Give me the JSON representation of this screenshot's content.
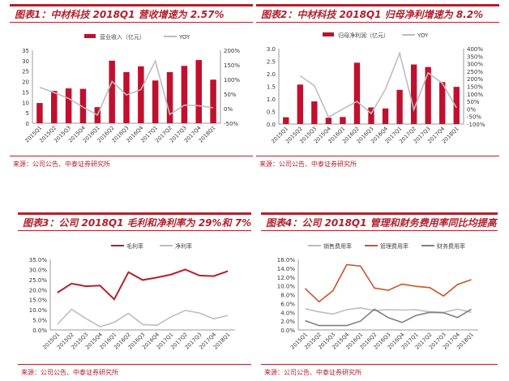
{
  "source": "来源：公司公告、中泰证券研究所",
  "colors": {
    "red": "#b3202c",
    "bar": "#c0102e",
    "gray": "#bdbdbd",
    "dark": "#7f7f7f",
    "orange": "#c8542a"
  },
  "chart_data": [
    {
      "type": "bar+line",
      "title": "图表1：中材科技 2018Q1 营收增速为 2.57%",
      "categories": [
        "2015Q1",
        "2015Q2",
        "2015Q3",
        "2015Q4",
        "2016Q1",
        "2016Q2",
        "2016Q3",
        "2016Q4",
        "2017Q1",
        "2017Q2",
        "2017Q3",
        "2017Q4",
        "2018Q1"
      ],
      "series": [
        {
          "name": "营业收入（亿元）",
          "type": "bar",
          "axis": "left",
          "values": [
            9.7,
            15.5,
            16.7,
            16.5,
            7.7,
            30.0,
            24.5,
            27.3,
            20.5,
            24.5,
            27.5,
            30.3,
            20.9
          ]
        },
        {
          "name": "YOY",
          "type": "line",
          "axis": "right",
          "values": [
            73,
            55,
            35,
            5,
            -22,
            93,
            47,
            65,
            163,
            -20,
            12,
            10,
            3
          ]
        }
      ],
      "yleft": {
        "lim": [
          0,
          35
        ],
        "ticks": [
          "0",
          "5",
          "10",
          "15",
          "20",
          "25",
          "30",
          "35"
        ]
      },
      "yright": {
        "lim": [
          -50,
          200
        ],
        "ticks": [
          "-50%",
          "0%",
          "50%",
          "100%",
          "150%",
          "200%"
        ]
      },
      "legend": "top"
    },
    {
      "type": "bar+line",
      "title": "图表2：中材科技 2018Q1 归母净利增速为 8.2%",
      "categories": [
        "2015Q1",
        "2015Q2",
        "2015Q3",
        "2015Q4",
        "2016Q1",
        "2016Q2",
        "2016Q3",
        "2016Q4",
        "2017Q1",
        "2017Q2",
        "2017Q3",
        "2017Q4",
        "2018Q1"
      ],
      "series": [
        {
          "name": "归母净利润（亿元）",
          "type": "bar",
          "axis": "left",
          "values": [
            0.27,
            1.57,
            0.9,
            0.25,
            0.28,
            2.44,
            0.66,
            0.62,
            1.36,
            2.37,
            2.27,
            1.67,
            1.48
          ]
        },
        {
          "name": "YOY",
          "type": "line",
          "axis": "right",
          "values": [
            null,
            220,
            155,
            -55,
            0,
            50,
            -30,
            130,
            370,
            -5,
            240,
            170,
            8
          ]
        }
      ],
      "yleft": {
        "lim": [
          0,
          3
        ],
        "ticks": [
          "0.0",
          "0.5",
          "1.0",
          "1.5",
          "2.0",
          "2.5",
          "3.0"
        ]
      },
      "yright": {
        "lim": [
          -100,
          400
        ],
        "ticks": [
          "-100%",
          "-50%",
          "0%",
          "50%",
          "100%",
          "150%",
          "200%",
          "250%",
          "300%",
          "350%",
          "400%"
        ]
      },
      "legend": "top"
    },
    {
      "type": "line",
      "title": "图表3：公司 2018Q1 毛利和净利率为 29%和 7%",
      "categories": [
        "2015Q1",
        "2015Q2",
        "2015Q3",
        "2015Q4",
        "2016Q1",
        "2016Q2",
        "2016Q3",
        "2016Q4",
        "2017Q1",
        "2017Q2",
        "2017Q3",
        "2017Q4",
        "2018Q1"
      ],
      "series": [
        {
          "name": "毛利率",
          "values": [
            18.5,
            23.0,
            21.7,
            22.0,
            15.2,
            28.7,
            24.8,
            26.0,
            27.5,
            30.0,
            27.0,
            26.7,
            29.2
          ]
        },
        {
          "name": "净利率",
          "values": [
            2.8,
            10.2,
            5.7,
            1.6,
            3.8,
            8.2,
            2.7,
            2.3,
            6.5,
            9.7,
            8.4,
            5.5,
            7.2
          ]
        }
      ],
      "yleft": {
        "lim": [
          0,
          35
        ],
        "ticks": [
          "0.0%",
          "5.0%",
          "10.0%",
          "15.0%",
          "20.0%",
          "25.0%",
          "30.0%",
          "35.0%"
        ]
      },
      "legend": "top"
    },
    {
      "type": "line",
      "title": "图表4：公司 2018Q1 管理和财务费用率同比均提高",
      "categories": [
        "2015Q1",
        "2015Q2",
        "2015Q3",
        "2015Q4",
        "2016Q1",
        "2016Q2",
        "2016Q3",
        "2016Q4",
        "2017Q1",
        "2017Q2",
        "2017Q3",
        "2017Q4",
        "2018Q1"
      ],
      "series": [
        {
          "name": "销售费用率",
          "values": [
            4.8,
            4.1,
            3.6,
            4.6,
            5.0,
            4.4,
            4.6,
            4.5,
            4.6,
            4.1,
            4.0,
            4.7,
            4.0
          ]
        },
        {
          "name": "管理费用率",
          "values": [
            9.4,
            6.4,
            8.9,
            14.8,
            14.5,
            9.5,
            9.0,
            10.4,
            9.9,
            9.6,
            7.7,
            10.3,
            11.4
          ]
        },
        {
          "name": "财务费用率",
          "values": [
            2.1,
            1.0,
            1.0,
            1.0,
            2.0,
            4.7,
            2.8,
            1.7,
            3.3,
            4.0,
            3.9,
            2.8,
            4.7
          ]
        }
      ],
      "yleft": {
        "lim": [
          0,
          16
        ],
        "ticks": [
          "0.0%",
          "2.0%",
          "4.0%",
          "6.0%",
          "8.0%",
          "10.0%",
          "12.0%",
          "14.0%",
          "16.0%"
        ]
      },
      "legend": "top"
    }
  ]
}
